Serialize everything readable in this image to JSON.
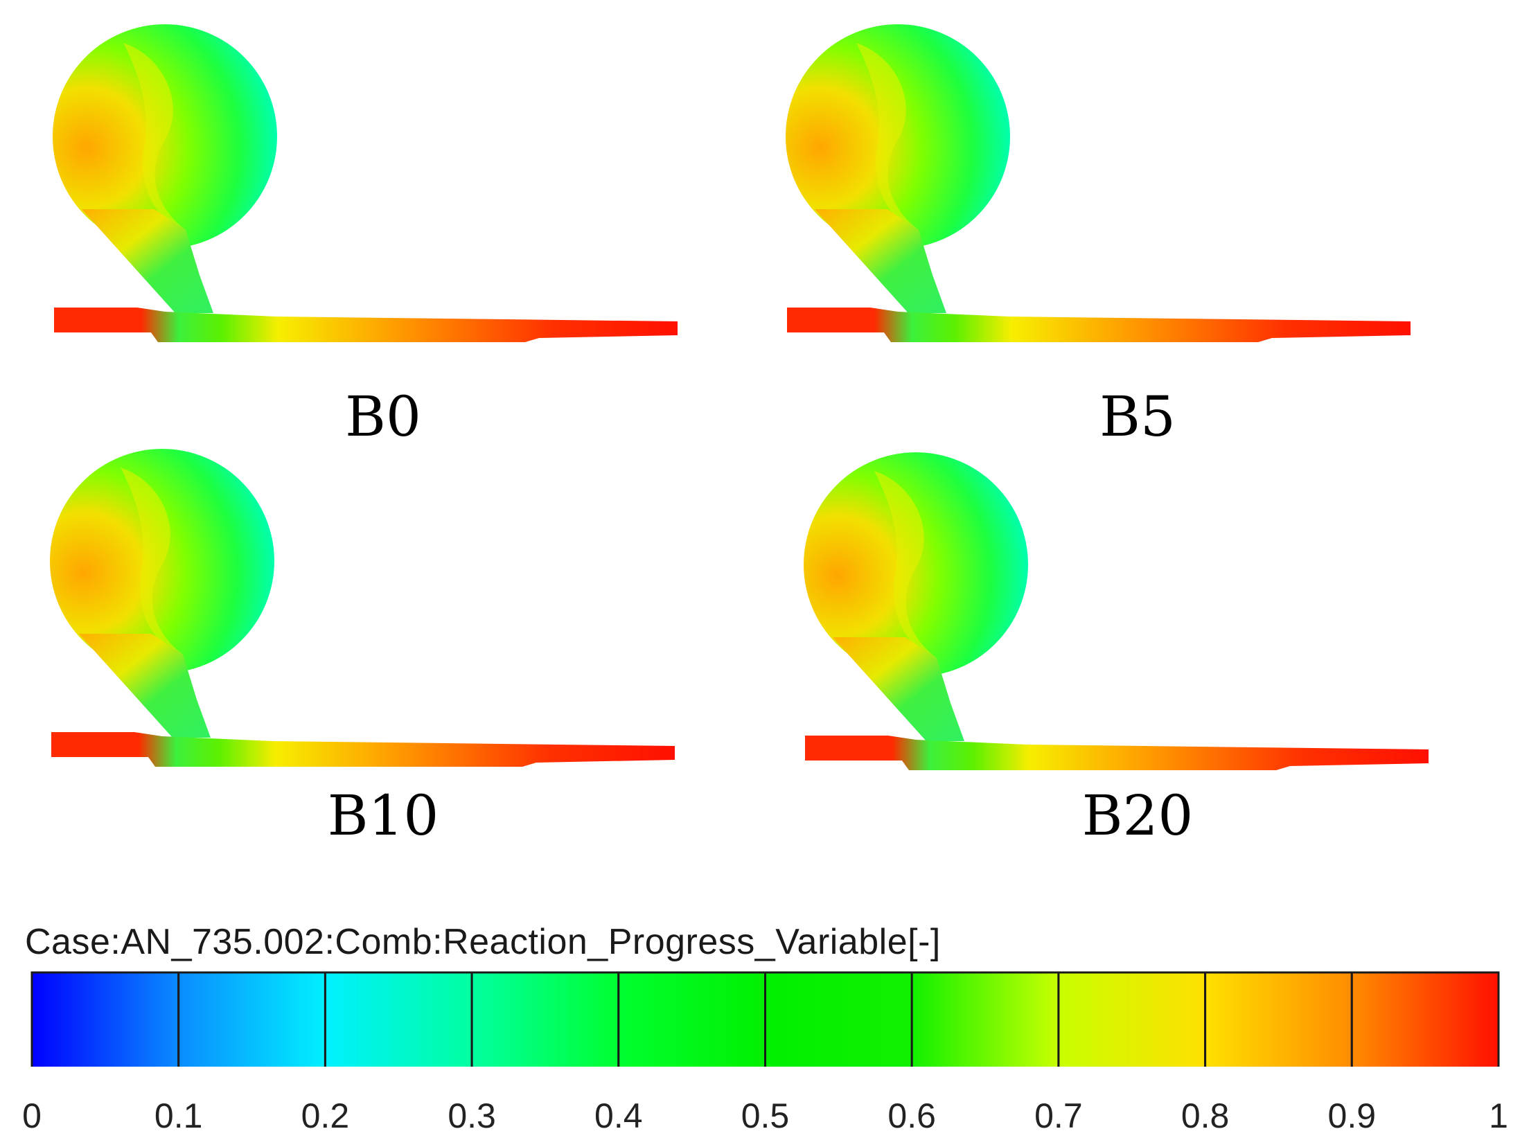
{
  "panels": [
    {
      "name": "B0"
    },
    {
      "name": "B5"
    },
    {
      "name": "B10"
    },
    {
      "name": "B20"
    }
  ],
  "legend": {
    "title": "Case:AN_735.002:Comb:Reaction_Progress_Variable[-]",
    "ticks": [
      "0",
      "0.1",
      "0.2",
      "0.3",
      "0.4",
      "0.5",
      "0.6",
      "0.7",
      "0.8",
      "0.9",
      "1"
    ],
    "colors": [
      "#0000ff",
      "#0a8cff",
      "#00f0ff",
      "#00ffa0",
      "#00ff30",
      "#00f000",
      "#10f000",
      "#c8ff00",
      "#ffe000",
      "#ff8c00",
      "#ff1000"
    ]
  }
}
